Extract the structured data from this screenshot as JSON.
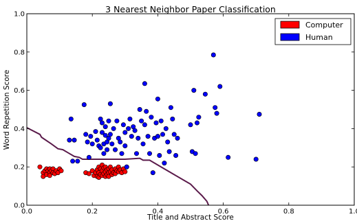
{
  "chart_data": {
    "type": "scatter",
    "title": "3 Nearest Neighbor Paper Classification",
    "xlabel": "Title and Abstract Score",
    "ylabel": "Word Repetition Score",
    "xlim": [
      0,
      1
    ],
    "ylim": [
      0,
      1
    ],
    "x_ticks": [
      "0.0",
      "0.2",
      "0.4",
      "0.6",
      "0.8",
      "1.0"
    ],
    "y_ticks": [
      "0.0",
      "0.2",
      "0.4",
      "0.6",
      "0.8",
      "1.0"
    ],
    "grid": false,
    "legend_position": "top-right",
    "series": [
      {
        "name": "Computer",
        "color": "#ff0000",
        "points": [
          [
            0.04,
            0.2
          ],
          [
            0.05,
            0.17
          ],
          [
            0.05,
            0.15
          ],
          [
            0.055,
            0.18
          ],
          [
            0.06,
            0.19
          ],
          [
            0.06,
            0.16
          ],
          [
            0.065,
            0.18
          ],
          [
            0.07,
            0.19
          ],
          [
            0.07,
            0.17
          ],
          [
            0.07,
            0.155
          ],
          [
            0.075,
            0.18
          ],
          [
            0.08,
            0.19
          ],
          [
            0.08,
            0.17
          ],
          [
            0.085,
            0.165
          ],
          [
            0.09,
            0.18
          ],
          [
            0.095,
            0.17
          ],
          [
            0.1,
            0.19
          ],
          [
            0.105,
            0.18
          ],
          [
            0.18,
            0.17
          ],
          [
            0.19,
            0.165
          ],
          [
            0.2,
            0.18
          ],
          [
            0.205,
            0.155
          ],
          [
            0.21,
            0.17
          ],
          [
            0.215,
            0.185
          ],
          [
            0.215,
            0.15
          ],
          [
            0.22,
            0.2
          ],
          [
            0.22,
            0.17
          ],
          [
            0.22,
            0.145
          ],
          [
            0.225,
            0.19
          ],
          [
            0.225,
            0.16
          ],
          [
            0.23,
            0.21
          ],
          [
            0.23,
            0.18
          ],
          [
            0.23,
            0.155
          ],
          [
            0.235,
            0.195
          ],
          [
            0.235,
            0.165
          ],
          [
            0.24,
            0.2
          ],
          [
            0.24,
            0.175
          ],
          [
            0.24,
            0.15
          ],
          [
            0.245,
            0.185
          ],
          [
            0.245,
            0.16
          ],
          [
            0.25,
            0.19
          ],
          [
            0.25,
            0.17
          ],
          [
            0.25,
            0.15
          ],
          [
            0.255,
            0.2
          ],
          [
            0.255,
            0.175
          ],
          [
            0.26,
            0.185
          ],
          [
            0.26,
            0.16
          ],
          [
            0.265,
            0.17
          ],
          [
            0.27,
            0.19
          ],
          [
            0.27,
            0.165
          ],
          [
            0.275,
            0.18
          ],
          [
            0.28,
            0.175
          ],
          [
            0.28,
            0.2
          ],
          [
            0.285,
            0.185
          ],
          [
            0.29,
            0.17
          ],
          [
            0.295,
            0.19
          ],
          [
            0.3,
            0.175
          ],
          [
            0.305,
            0.2
          ]
        ]
      },
      {
        "name": "Human",
        "color": "#0000ff",
        "points": [
          [
            0.13,
            0.34
          ],
          [
            0.135,
            0.45
          ],
          [
            0.14,
            0.23
          ],
          [
            0.145,
            0.34
          ],
          [
            0.155,
            0.23
          ],
          [
            0.175,
            0.525
          ],
          [
            0.18,
            0.37
          ],
          [
            0.185,
            0.33
          ],
          [
            0.19,
            0.25
          ],
          [
            0.195,
            0.36
          ],
          [
            0.2,
            0.32
          ],
          [
            0.21,
            0.385
          ],
          [
            0.215,
            0.34
          ],
          [
            0.22,
            0.31
          ],
          [
            0.225,
            0.45
          ],
          [
            0.225,
            0.3
          ],
          [
            0.23,
            0.43
          ],
          [
            0.23,
            0.38
          ],
          [
            0.235,
            0.32
          ],
          [
            0.235,
            0.27
          ],
          [
            0.24,
            0.41
          ],
          [
            0.24,
            0.365
          ],
          [
            0.245,
            0.33
          ],
          [
            0.245,
            0.29
          ],
          [
            0.25,
            0.44
          ],
          [
            0.25,
            0.35
          ],
          [
            0.255,
            0.53
          ],
          [
            0.255,
            0.37
          ],
          [
            0.26,
            0.32
          ],
          [
            0.265,
            0.4
          ],
          [
            0.27,
            0.29
          ],
          [
            0.275,
            0.44
          ],
          [
            0.28,
            0.35
          ],
          [
            0.285,
            0.33
          ],
          [
            0.29,
            0.27
          ],
          [
            0.295,
            0.42
          ],
          [
            0.3,
            0.38
          ],
          [
            0.3,
            0.31
          ],
          [
            0.305,
            0.2
          ],
          [
            0.31,
            0.4
          ],
          [
            0.315,
            0.45
          ],
          [
            0.32,
            0.36
          ],
          [
            0.325,
            0.41
          ],
          [
            0.33,
            0.39
          ],
          [
            0.335,
            0.27
          ],
          [
            0.34,
            0.35
          ],
          [
            0.345,
            0.5
          ],
          [
            0.35,
            0.44
          ],
          [
            0.355,
            0.32
          ],
          [
            0.36,
            0.635
          ],
          [
            0.36,
            0.42
          ],
          [
            0.365,
            0.49
          ],
          [
            0.37,
            0.36
          ],
          [
            0.375,
            0.27
          ],
          [
            0.38,
            0.46
          ],
          [
            0.385,
            0.17
          ],
          [
            0.39,
            0.35
          ],
          [
            0.395,
            0.43
          ],
          [
            0.4,
            0.555
          ],
          [
            0.4,
            0.36
          ],
          [
            0.405,
            0.26
          ],
          [
            0.41,
            0.44
          ],
          [
            0.415,
            0.37
          ],
          [
            0.42,
            0.22
          ],
          [
            0.425,
            0.4
          ],
          [
            0.43,
            0.33
          ],
          [
            0.435,
            0.28
          ],
          [
            0.44,
            0.51
          ],
          [
            0.445,
            0.45
          ],
          [
            0.45,
            0.37
          ],
          [
            0.455,
            0.26
          ],
          [
            0.46,
            0.35
          ],
          [
            0.5,
            0.42
          ],
          [
            0.505,
            0.28
          ],
          [
            0.51,
            0.6
          ],
          [
            0.515,
            0.27
          ],
          [
            0.52,
            0.43
          ],
          [
            0.525,
            0.46
          ],
          [
            0.545,
            0.58
          ],
          [
            0.57,
            0.785
          ],
          [
            0.575,
            0.51
          ],
          [
            0.58,
            0.48
          ],
          [
            0.59,
            0.62
          ],
          [
            0.615,
            0.25
          ],
          [
            0.7,
            0.24
          ],
          [
            0.71,
            0.475
          ]
        ]
      }
    ],
    "decision_boundary": {
      "color": "#5a1a4a",
      "points": [
        [
          0.0,
          0.405
        ],
        [
          0.04,
          0.37
        ],
        [
          0.045,
          0.355
        ],
        [
          0.075,
          0.32
        ],
        [
          0.095,
          0.295
        ],
        [
          0.11,
          0.29
        ],
        [
          0.125,
          0.275
        ],
        [
          0.145,
          0.255
        ],
        [
          0.16,
          0.25
        ],
        [
          0.17,
          0.24
        ],
        [
          0.19,
          0.24
        ],
        [
          0.3,
          0.24
        ],
        [
          0.345,
          0.245
        ],
        [
          0.355,
          0.235
        ],
        [
          0.375,
          0.235
        ],
        [
          0.395,
          0.215
        ],
        [
          0.42,
          0.19
        ],
        [
          0.45,
          0.16
        ],
        [
          0.48,
          0.13
        ],
        [
          0.5,
          0.11
        ],
        [
          0.52,
          0.075
        ],
        [
          0.535,
          0.05
        ],
        [
          0.55,
          0.02
        ],
        [
          0.555,
          0.0
        ]
      ]
    }
  }
}
